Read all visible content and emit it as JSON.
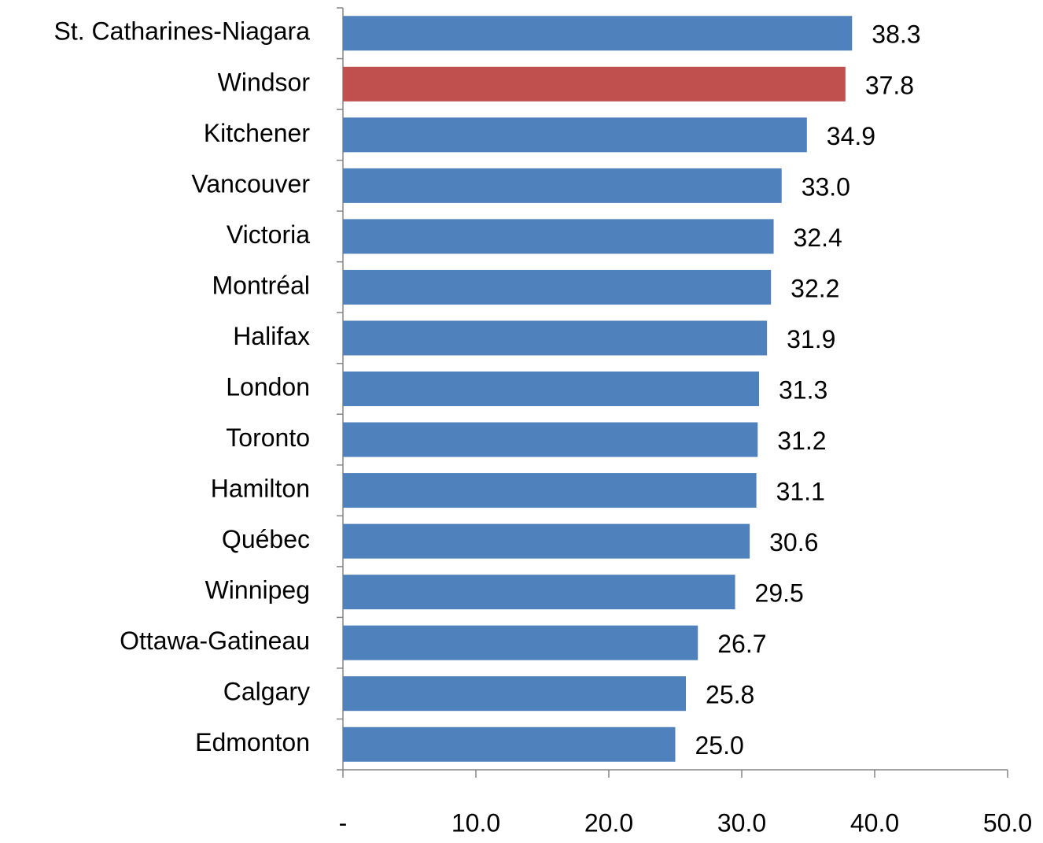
{
  "chart_data": {
    "type": "bar",
    "orientation": "horizontal",
    "categories": [
      "St. Catharines-Niagara",
      "Windsor",
      "Kitchener",
      "Vancouver",
      "Victoria",
      "Montréal",
      "Halifax",
      "London",
      "Toronto",
      "Hamilton",
      "Québec",
      "Winnipeg",
      "Ottawa-Gatineau",
      "Calgary",
      "Edmonton"
    ],
    "values": [
      38.3,
      37.8,
      34.9,
      33.0,
      32.4,
      32.2,
      31.9,
      31.3,
      31.2,
      31.1,
      30.6,
      29.5,
      26.7,
      25.8,
      25.0
    ],
    "value_labels": [
      "38.3",
      "37.8",
      "34.9",
      "33.0",
      "32.4",
      "32.2",
      "31.9",
      "31.3",
      "31.2",
      "31.1",
      "30.6",
      "29.5",
      "26.7",
      "25.8",
      "25.0"
    ],
    "colors": [
      "#4f81bd",
      "#c0504d",
      "#4f81bd",
      "#4f81bd",
      "#4f81bd",
      "#4f81bd",
      "#4f81bd",
      "#4f81bd",
      "#4f81bd",
      "#4f81bd",
      "#4f81bd",
      "#4f81bd",
      "#4f81bd",
      "#4f81bd",
      "#4f81bd"
    ],
    "xlim": [
      0,
      50
    ],
    "xticks": [
      {
        "value": 0,
        "label": "-"
      },
      {
        "value": 10,
        "label": "10.0"
      },
      {
        "value": 20,
        "label": "20.0"
      },
      {
        "value": 30,
        "label": "30.0"
      },
      {
        "value": 40,
        "label": "40.0"
      },
      {
        "value": 50,
        "label": "50.0"
      }
    ],
    "grid": false
  }
}
